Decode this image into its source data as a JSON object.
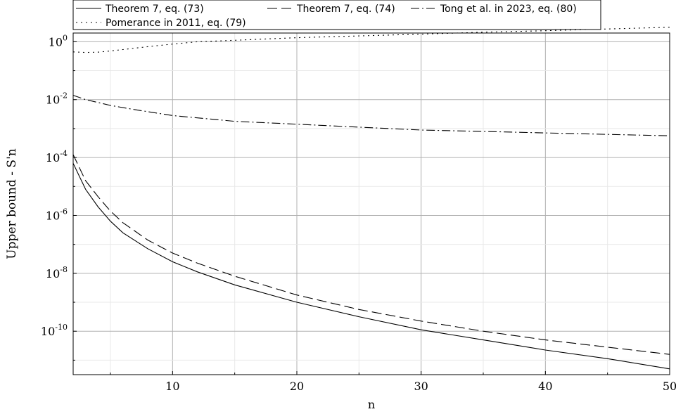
{
  "chart_data": {
    "type": "line",
    "title": "",
    "xlabel": "n",
    "ylabel": "Upper bound - S'n",
    "xlim": [
      2,
      50
    ],
    "ylim_log10": [
      -11.5,
      0.3
    ],
    "yscale": "log",
    "grid": true,
    "legend_position": "top",
    "x_ticks": [
      10,
      20,
      30,
      40,
      50
    ],
    "y_ticks": [
      {
        "mantissa": "10",
        "exponent": "0"
      },
      {
        "mantissa": "10",
        "exponent": "-2"
      },
      {
        "mantissa": "10",
        "exponent": "-4"
      },
      {
        "mantissa": "10",
        "exponent": "-6"
      },
      {
        "mantissa": "10",
        "exponent": "-8"
      },
      {
        "mantissa": "10",
        "exponent": "-10"
      }
    ],
    "series": [
      {
        "name": "Theorem 7, eq. (73)",
        "dash": "solid",
        "x": [
          2,
          3,
          4,
          5,
          6,
          8,
          10,
          12,
          15,
          20,
          25,
          30,
          35,
          40,
          45,
          50
        ],
        "log10_y": [
          -4.2,
          -5.1,
          -5.7,
          -6.2,
          -6.6,
          -7.15,
          -7.6,
          -7.95,
          -8.4,
          -9.0,
          -9.5,
          -9.95,
          -10.3,
          -10.65,
          -10.95,
          -11.3
        ]
      },
      {
        "name": "Theorem 7, eq. (74)",
        "dash": "long-dash",
        "x": [
          2,
          3,
          4,
          5,
          6,
          8,
          10,
          12,
          15,
          20,
          25,
          30,
          35,
          40,
          45,
          50
        ],
        "log10_y": [
          -3.9,
          -4.8,
          -5.35,
          -5.85,
          -6.25,
          -6.85,
          -7.3,
          -7.65,
          -8.1,
          -8.75,
          -9.25,
          -9.65,
          -10.0,
          -10.3,
          -10.55,
          -10.8
        ]
      },
      {
        "name": "Tong et al. in 2023, eq. (80)",
        "dash": "dash-dot",
        "x": [
          2,
          3,
          4,
          5,
          7,
          10,
          15,
          20,
          25,
          30,
          35,
          40,
          45,
          50
        ],
        "log10_y": [
          -1.85,
          -2.0,
          -2.1,
          -2.2,
          -2.35,
          -2.55,
          -2.75,
          -2.85,
          -2.95,
          -3.05,
          -3.1,
          -3.15,
          -3.2,
          -3.25
        ]
      },
      {
        "name": "Pomerance in 2011, eq. (79)",
        "dash": "dotted",
        "x": [
          2,
          3,
          4,
          5,
          6,
          8,
          10,
          12,
          15,
          20,
          25,
          30,
          35,
          40,
          45,
          50
        ],
        "log10_y": [
          -0.35,
          -0.37,
          -0.36,
          -0.32,
          -0.27,
          -0.17,
          -0.08,
          0.0,
          0.05,
          0.14,
          0.2,
          0.26,
          0.33,
          0.38,
          0.44,
          0.5
        ]
      }
    ]
  }
}
